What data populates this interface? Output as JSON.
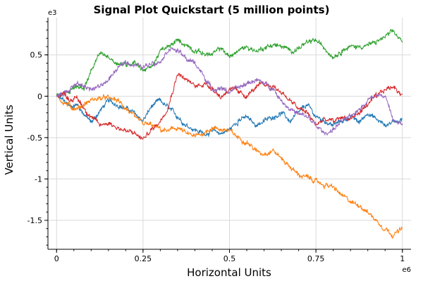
{
  "chart_data": {
    "type": "line",
    "title": "Signal Plot Quickstart (5 million points)",
    "xlabel": "Horizontal Units",
    "ylabel": "Vertical Units",
    "x_multiplier_label": "e6",
    "y_multiplier_label": "e3",
    "x_range": [
      -0.025,
      1.025
    ],
    "y_range": [
      -1.85,
      0.95
    ],
    "x_ticks": [
      0,
      0.25,
      0.5,
      0.75,
      1
    ],
    "x_tick_labels": [
      "0",
      "0.25",
      "0.5",
      "0.75",
      "1"
    ],
    "y_ticks": [
      0.5,
      0,
      -0.5,
      -1,
      -1.5
    ],
    "y_tick_labels": [
      "0.5",
      "0",
      "-0.5",
      "-1",
      "-1.5"
    ],
    "grid": true,
    "series": [
      {
        "color": "#1f77b4",
        "x": [
          0,
          0.02,
          0.04,
          0.06,
          0.08,
          0.1,
          0.125,
          0.15,
          0.175,
          0.2,
          0.225,
          0.25,
          0.275,
          0.3,
          0.325,
          0.35,
          0.375,
          0.4,
          0.425,
          0.45,
          0.475,
          0.5,
          0.525,
          0.55,
          0.575,
          0.6,
          0.625,
          0.65,
          0.675,
          0.7,
          0.725,
          0.75,
          0.775,
          0.8,
          0.825,
          0.85,
          0.875,
          0.9,
          0.925,
          0.95,
          0.975,
          1
        ],
        "y": [
          0,
          -0.05,
          -0.12,
          -0.1,
          -0.22,
          -0.32,
          -0.18,
          -0.05,
          -0.1,
          -0.15,
          -0.2,
          -0.3,
          -0.12,
          -0.05,
          -0.15,
          -0.25,
          -0.35,
          -0.4,
          -0.45,
          -0.42,
          -0.45,
          -0.4,
          -0.3,
          -0.25,
          -0.35,
          -0.3,
          -0.25,
          -0.2,
          -0.3,
          -0.2,
          -0.1,
          -0.25,
          -0.3,
          -0.35,
          -0.3,
          -0.25,
          -0.32,
          -0.2,
          -0.28,
          -0.35,
          -0.3,
          -0.27
        ]
      },
      {
        "color": "#ff7f0e",
        "x": [
          0,
          0.02,
          0.04,
          0.06,
          0.08,
          0.1,
          0.125,
          0.15,
          0.175,
          0.2,
          0.225,
          0.25,
          0.275,
          0.3,
          0.325,
          0.35,
          0.375,
          0.4,
          0.425,
          0.45,
          0.475,
          0.5,
          0.525,
          0.55,
          0.575,
          0.6,
          0.625,
          0.65,
          0.675,
          0.7,
          0.725,
          0.75,
          0.775,
          0.8,
          0.825,
          0.85,
          0.875,
          0.9,
          0.925,
          0.95,
          0.975,
          1
        ],
        "y": [
          0,
          -0.08,
          -0.12,
          -0.15,
          -0.1,
          -0.05,
          -0.02,
          -0.02,
          -0.05,
          -0.15,
          -0.25,
          -0.33,
          -0.35,
          -0.4,
          -0.42,
          -0.38,
          -0.45,
          -0.48,
          -0.45,
          -0.38,
          -0.4,
          -0.42,
          -0.5,
          -0.55,
          -0.65,
          -0.7,
          -0.65,
          -0.75,
          -0.85,
          -0.95,
          -0.98,
          -1.02,
          -1.08,
          -1.1,
          -1.2,
          -1.28,
          -1.32,
          -1.4,
          -1.5,
          -1.6,
          -1.68,
          -1.6
        ]
      },
      {
        "color": "#2ca02c",
        "x": [
          0,
          0.02,
          0.04,
          0.06,
          0.08,
          0.1,
          0.125,
          0.15,
          0.175,
          0.2,
          0.225,
          0.25,
          0.275,
          0.3,
          0.325,
          0.35,
          0.375,
          0.4,
          0.425,
          0.45,
          0.475,
          0.5,
          0.525,
          0.55,
          0.575,
          0.6,
          0.625,
          0.65,
          0.675,
          0.7,
          0.725,
          0.75,
          0.775,
          0.8,
          0.825,
          0.85,
          0.875,
          0.9,
          0.925,
          0.95,
          0.975,
          1
        ],
        "y": [
          0,
          0.02,
          0.08,
          0.12,
          0.1,
          0.3,
          0.52,
          0.48,
          0.4,
          0.38,
          0.42,
          0.32,
          0.35,
          0.55,
          0.6,
          0.68,
          0.62,
          0.55,
          0.52,
          0.5,
          0.58,
          0.48,
          0.55,
          0.6,
          0.55,
          0.58,
          0.62,
          0.6,
          0.55,
          0.58,
          0.65,
          0.68,
          0.58,
          0.48,
          0.55,
          0.6,
          0.6,
          0.62,
          0.65,
          0.72,
          0.78,
          0.65
        ]
      },
      {
        "color": "#d62728",
        "x": [
          0,
          0.02,
          0.04,
          0.06,
          0.08,
          0.1,
          0.125,
          0.15,
          0.175,
          0.2,
          0.225,
          0.25,
          0.275,
          0.3,
          0.325,
          0.35,
          0.375,
          0.4,
          0.425,
          0.45,
          0.475,
          0.5,
          0.525,
          0.55,
          0.575,
          0.6,
          0.625,
          0.65,
          0.675,
          0.7,
          0.725,
          0.75,
          0.775,
          0.8,
          0.825,
          0.85,
          0.875,
          0.9,
          0.925,
          0.95,
          0.975,
          1
        ],
        "y": [
          0,
          0.05,
          -0.05,
          -0.02,
          -0.15,
          -0.25,
          -0.35,
          -0.32,
          -0.38,
          -0.42,
          -0.45,
          -0.52,
          -0.4,
          -0.3,
          -0.1,
          0.28,
          0.2,
          0.12,
          0.15,
          0.1,
          -0.02,
          0.1,
          0.05,
          0.0,
          0.1,
          0.15,
          0.12,
          0.05,
          -0.05,
          -0.15,
          -0.2,
          -0.35,
          -0.28,
          -0.3,
          -0.25,
          -0.28,
          -0.2,
          -0.1,
          0.0,
          0.08,
          0.12,
          0.02
        ]
      },
      {
        "color": "#9467bd",
        "x": [
          0,
          0.02,
          0.04,
          0.06,
          0.08,
          0.1,
          0.125,
          0.15,
          0.175,
          0.2,
          0.225,
          0.25,
          0.275,
          0.3,
          0.325,
          0.35,
          0.375,
          0.4,
          0.425,
          0.45,
          0.475,
          0.5,
          0.525,
          0.55,
          0.575,
          0.6,
          0.625,
          0.65,
          0.675,
          0.7,
          0.725,
          0.75,
          0.775,
          0.8,
          0.825,
          0.85,
          0.875,
          0.9,
          0.925,
          0.95,
          0.975,
          1
        ],
        "y": [
          0,
          0.03,
          0.1,
          0.15,
          0.12,
          0.08,
          0.12,
          0.2,
          0.32,
          0.42,
          0.38,
          0.35,
          0.4,
          0.42,
          0.58,
          0.55,
          0.45,
          0.4,
          0.25,
          0.08,
          0.1,
          0.05,
          0.1,
          0.15,
          0.2,
          0.15,
          0.1,
          -0.05,
          -0.15,
          -0.22,
          -0.25,
          -0.35,
          -0.45,
          -0.4,
          -0.3,
          -0.25,
          -0.15,
          -0.05,
          0.02,
          0.0,
          -0.3,
          -0.35
        ]
      }
    ]
  }
}
